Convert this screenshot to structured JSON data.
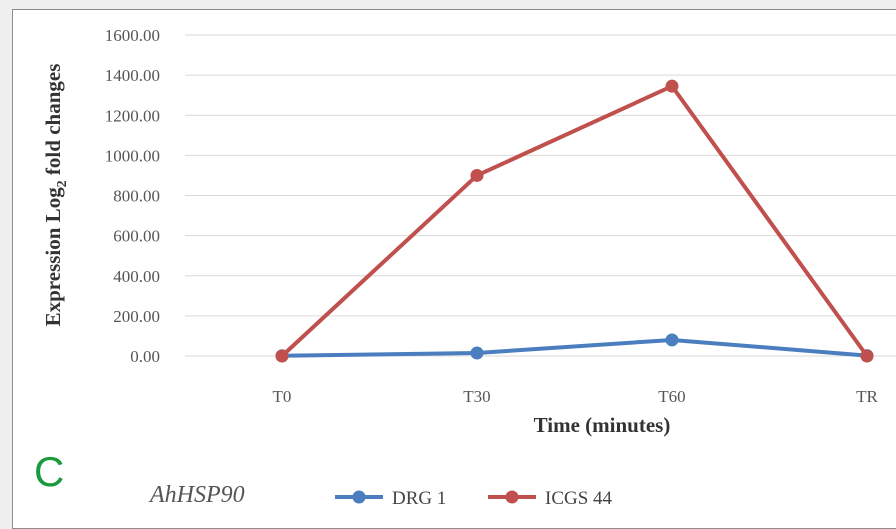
{
  "chart_data": {
    "type": "line",
    "title": "",
    "xlabel": "Time (minutes)",
    "ylabel_main": "Expression Log",
    "ylabel_sub": "2",
    "ylabel_tail": " fold changes",
    "categories": [
      "T0",
      "T30",
      "T60",
      "TR"
    ],
    "ylim": [
      0,
      1600
    ],
    "y_ticks": [
      "0.00",
      "200.00",
      "400.00",
      "600.00",
      "800.00",
      "1000.00",
      "1200.00",
      "1400.00",
      "1600.00"
    ],
    "grid": true,
    "legend_position": "bottom",
    "series": [
      {
        "name": "DRG 1",
        "color": "#4a7ebf",
        "values": [
          1,
          15,
          80,
          2
        ]
      },
      {
        "name": "ICGS 44",
        "color": "#c0504d",
        "values": [
          0,
          900,
          1345,
          0
        ]
      }
    ]
  },
  "panel_letter": "C",
  "gene_label": "AhHSP90"
}
